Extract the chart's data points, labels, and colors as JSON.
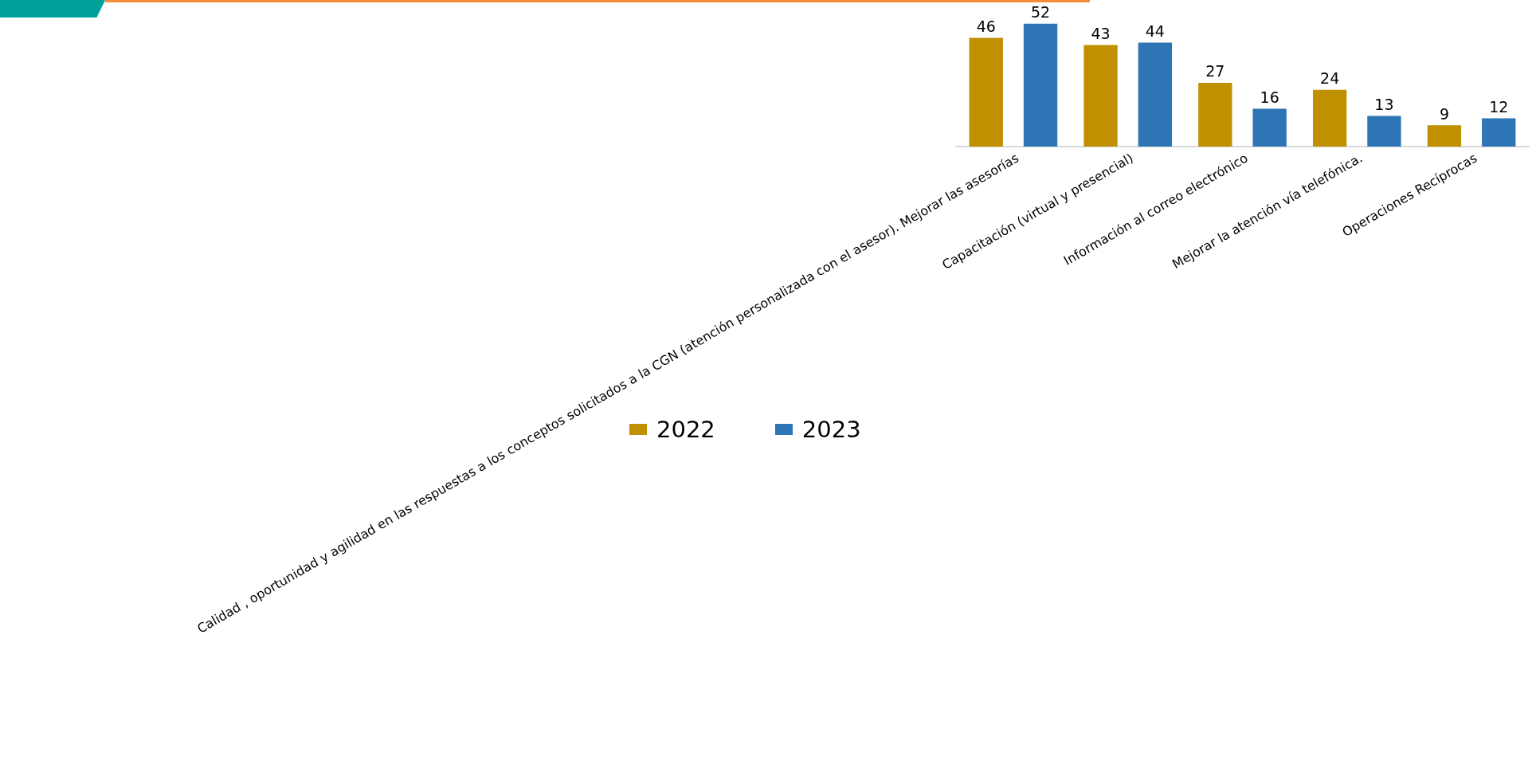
{
  "chart_data": {
    "type": "bar",
    "categories": [
      "Calidad , oportunidad y agilidad en las respuestas a los conceptos solicitados a la CGN (atención personalizada con el asesor). Mejorar las asesorías",
      "Capacitación (virtual y presencial)",
      "Información al correo electrónico",
      "Mejorar la atención vía telefónica.",
      "Operaciones Recíprocas"
    ],
    "series": [
      {
        "name": "2022",
        "color": "#bf9000",
        "values": [
          46,
          43,
          27,
          24,
          9
        ]
      },
      {
        "name": "2023",
        "color": "#2e75b6",
        "values": [
          52,
          44,
          16,
          13,
          12
        ]
      }
    ],
    "data_labels": true,
    "legend": "bottom",
    "grid": false,
    "tick_labels": "x"
  }
}
